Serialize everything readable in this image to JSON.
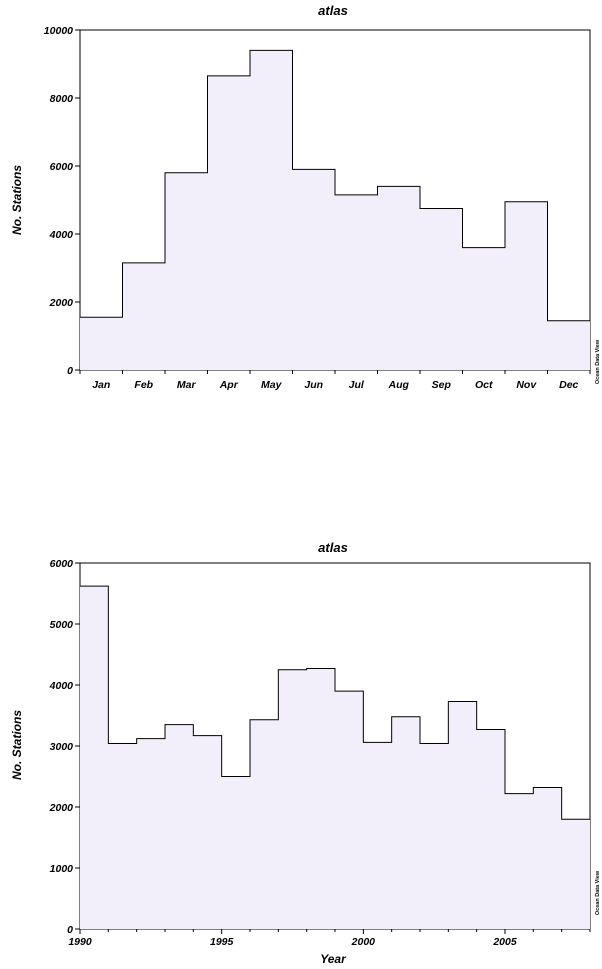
{
  "chart_data": [
    {
      "type": "bar",
      "title": "atlas",
      "xlabel": "",
      "ylabel": "No. Stations",
      "categories": [
        "Jan",
        "Feb",
        "Mar",
        "Apr",
        "May",
        "Jun",
        "Jul",
        "Aug",
        "Sep",
        "Oct",
        "Nov",
        "Dec"
      ],
      "values": [
        1550,
        3150,
        5800,
        8650,
        9400,
        5900,
        5150,
        5400,
        4750,
        3600,
        4950,
        1450
      ],
      "ylim": [
        0,
        10000
      ],
      "yticks": [
        0,
        2000,
        4000,
        6000,
        8000,
        10000
      ],
      "fill": "#f3effa",
      "stroke": "#000000",
      "grid": false,
      "credit": "Ocean Data View"
    },
    {
      "type": "bar",
      "title": "atlas",
      "xlabel": "Year",
      "ylabel": "No. Stations",
      "x": [
        1990,
        1991,
        1992,
        1993,
        1994,
        1995,
        1996,
        1997,
        1998,
        1999,
        2000,
        2001,
        2002,
        2003,
        2004,
        2005,
        2006,
        2007
      ],
      "values": [
        5620,
        3040,
        3120,
        3350,
        3170,
        2500,
        3430,
        4250,
        4270,
        3900,
        3060,
        3480,
        3040,
        3730,
        3270,
        2220,
        2320,
        1800
      ],
      "xlim": [
        1990,
        2008
      ],
      "xticks": [
        1990,
        1995,
        2000,
        2005
      ],
      "ylim": [
        0,
        6000
      ],
      "yticks": [
        0,
        1000,
        2000,
        3000,
        4000,
        5000,
        6000
      ],
      "fill": "#f3effa",
      "stroke": "#000000",
      "grid": false,
      "credit": "Ocean Data View"
    }
  ]
}
